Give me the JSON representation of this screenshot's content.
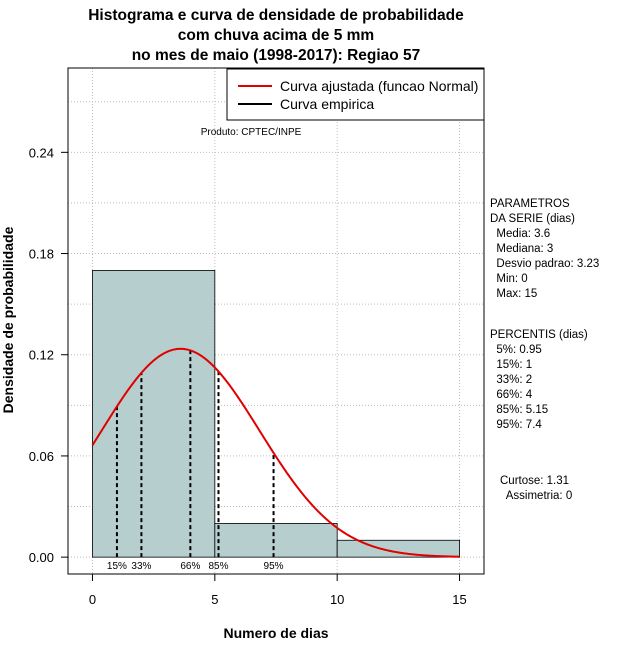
{
  "chart_data": {
    "type": "bar",
    "title_lines": [
      "Histograma e curva de densidade de probabilidade",
      "com chuva acima de 5 mm",
      "no mes de maio (1998-2017): Regiao 57"
    ],
    "xlabel": "Numero de dias",
    "ylabel": "Densidade de probabilidade",
    "xlim": [
      -1,
      16
    ],
    "ylim": [
      -0.01,
      0.29
    ],
    "x_ticks": [
      0,
      5,
      10,
      15
    ],
    "x_tick_labels": [
      "0",
      "5",
      "10",
      "15"
    ],
    "y_ticks": [
      0.0,
      0.06,
      0.12,
      0.18,
      0.24
    ],
    "y_tick_labels": [
      "0.00",
      "0.06",
      "0.12",
      "0.18",
      "0.24"
    ],
    "grid": true,
    "bins": [
      {
        "x0": 0,
        "x1": 5,
        "density": 0.17
      },
      {
        "x0": 5,
        "x1": 10,
        "density": 0.02
      },
      {
        "x0": 10,
        "x1": 15,
        "density": 0.01
      }
    ],
    "normal_curve": {
      "mean": 3.6,
      "sd": 3.23,
      "x_min": 0,
      "x_max": 15
    },
    "percentile_markers": [
      {
        "x": 1,
        "label": "15%"
      },
      {
        "x": 2,
        "label": "33%"
      },
      {
        "x": 4,
        "label": "66%"
      },
      {
        "x": 5.15,
        "label": "85%"
      },
      {
        "x": 7.4,
        "label": "95%"
      }
    ],
    "legend": {
      "position": "top-right",
      "entries": [
        {
          "label": "Curva ajustada (funcao Normal)",
          "color": "#e00000"
        },
        {
          "label": "Curva empirica",
          "color": "#000000"
        }
      ]
    },
    "annotation": "Produto: CPTEC/INPE",
    "colors": {
      "bar_fill": "#b6cece",
      "curve": "#e00000",
      "grid": "#bdbdbd"
    }
  },
  "side_panel": {
    "parametros": [
      "PARAMETROS",
      "DA SERIE (dias)",
      "  Media: 3.6",
      "  Mediana: 3",
      "  Desvio padrao: 3.23",
      "  Min: 0",
      "  Max: 15"
    ],
    "percentis": [
      "PERCENTIS (dias)",
      "  5%: 0.95",
      "  15%: 1",
      "  33%: 2",
      "  66%: 4",
      "  85%: 5.15",
      "  95%: 7.4"
    ],
    "momentos": [
      "Curtose: 1.31",
      "  Assimetria: 0"
    ]
  }
}
